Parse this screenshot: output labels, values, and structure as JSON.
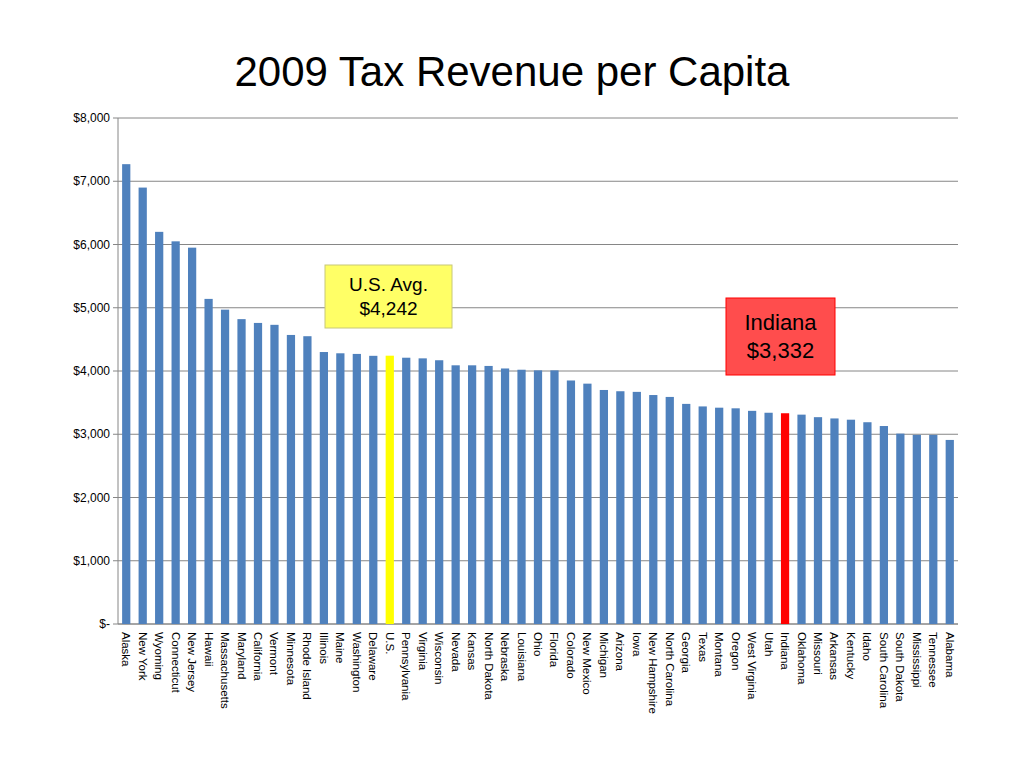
{
  "chart_data": {
    "type": "bar",
    "title": "2009 Tax Revenue per Capita",
    "categories": [
      "Alaska",
      "New York",
      "Wyoming",
      "Connecticut",
      "New Jersey",
      "Hawaii",
      "Massachusetts",
      "Maryland",
      "California",
      "Vermont",
      "Minnesota",
      "Rhode Island",
      "Illinois",
      "Maine",
      "Washington",
      "Delaware",
      "U.S.",
      "Pennsylvania",
      "Virginia",
      "Wisconsin",
      "Nevada",
      "Kansas",
      "North Dakota",
      "Nebraska",
      "Louisiana",
      "Ohio",
      "Florida",
      "Colorado",
      "New Mexico",
      "Michigan",
      "Arizona",
      "Iowa",
      "New Hampshire",
      "North Carolina",
      "Georgia",
      "Texas",
      "Montana",
      "Oregon",
      "West Virginia",
      "Utah",
      "Indiana",
      "Oklahoma",
      "Missouri",
      "Arkansas",
      "Kentucky",
      "Idaho",
      "South Carolina",
      "South Dakota",
      "Mississippi",
      "Tennessee",
      "Alabama"
    ],
    "values": [
      7270,
      6900,
      6200,
      6050,
      5950,
      5140,
      4970,
      4820,
      4760,
      4730,
      4570,
      4550,
      4300,
      4280,
      4270,
      4240,
      4242,
      4210,
      4200,
      4170,
      4090,
      4090,
      4080,
      4040,
      4020,
      4010,
      4010,
      3850,
      3800,
      3700,
      3680,
      3670,
      3620,
      3590,
      3480,
      3440,
      3420,
      3410,
      3370,
      3340,
      3332,
      3310,
      3270,
      3250,
      3230,
      3190,
      3130,
      3010,
      2990,
      2990,
      2910
    ],
    "colors": [
      "#4f81bd",
      "#4f81bd",
      "#4f81bd",
      "#4f81bd",
      "#4f81bd",
      "#4f81bd",
      "#4f81bd",
      "#4f81bd",
      "#4f81bd",
      "#4f81bd",
      "#4f81bd",
      "#4f81bd",
      "#4f81bd",
      "#4f81bd",
      "#4f81bd",
      "#4f81bd",
      "#ffff00",
      "#4f81bd",
      "#4f81bd",
      "#4f81bd",
      "#4f81bd",
      "#4f81bd",
      "#4f81bd",
      "#4f81bd",
      "#4f81bd",
      "#4f81bd",
      "#4f81bd",
      "#4f81bd",
      "#4f81bd",
      "#4f81bd",
      "#4f81bd",
      "#4f81bd",
      "#4f81bd",
      "#4f81bd",
      "#4f81bd",
      "#4f81bd",
      "#4f81bd",
      "#4f81bd",
      "#4f81bd",
      "#4f81bd",
      "#ff0000",
      "#4f81bd",
      "#4f81bd",
      "#4f81bd",
      "#4f81bd",
      "#4f81bd",
      "#4f81bd",
      "#4f81bd",
      "#4f81bd",
      "#4f81bd",
      "#4f81bd"
    ],
    "ylim": [
      0,
      8000
    ],
    "yticks": [
      {
        "value": 0,
        "label": "$-"
      },
      {
        "value": 1000,
        "label": "$1,000"
      },
      {
        "value": 2000,
        "label": "$2,000"
      },
      {
        "value": 3000,
        "label": "$3,000"
      },
      {
        "value": 4000,
        "label": "$4,000"
      },
      {
        "value": 5000,
        "label": "$5,000"
      },
      {
        "value": 6000,
        "label": "$6,000"
      },
      {
        "value": 7000,
        "label": "$7,000"
      },
      {
        "value": 8000,
        "label": "$8,000"
      }
    ],
    "grid": true,
    "annotations": [
      {
        "lines": [
          "U.S. Avg.",
          "$4,242"
        ]
      },
      {
        "lines": [
          "Indiana",
          "$3,332"
        ]
      }
    ]
  }
}
